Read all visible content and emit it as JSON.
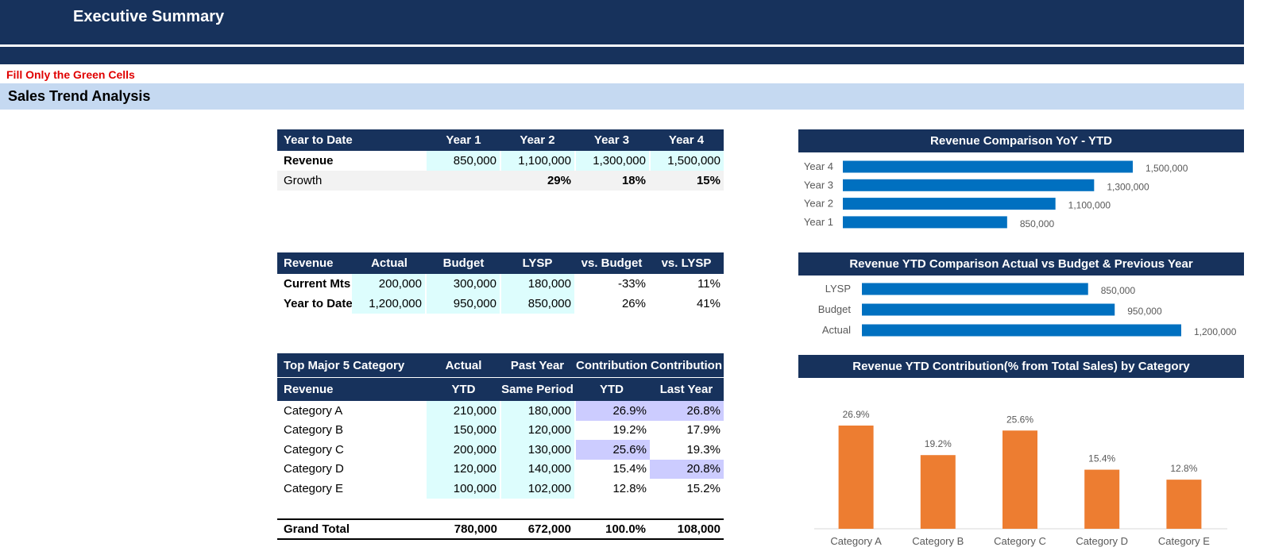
{
  "header": {
    "title": "Executive Summary"
  },
  "note": "Fill Only the Green Cells",
  "section_title": "Sales Trend Analysis",
  "colors": {
    "navy": "#17325c",
    "cyan": "#ddfdfd",
    "lavender": "#ccccff",
    "blue_bar": "#0070c0",
    "orange_bar": "#ed7d31",
    "light_blue": "#c5d9f1",
    "red_note": "#e00000"
  },
  "ytd_table": {
    "header": [
      "Year to Date",
      "Year 1",
      "Year 2",
      "Year 3",
      "Year 4"
    ],
    "revenue": {
      "label": "Revenue",
      "values": [
        "850,000",
        "1,100,000",
        "1,300,000",
        "1,500,000"
      ]
    },
    "growth": {
      "label": "Growth",
      "values": [
        "",
        "29%",
        "18%",
        "15%"
      ]
    }
  },
  "budget_table": {
    "header": [
      "Revenue",
      "Actual",
      "Budget",
      "LYSP",
      "vs. Budget",
      "vs. LYSP"
    ],
    "rows": [
      {
        "label": "Current Mts",
        "values": [
          "200,000",
          "300,000",
          "180,000",
          "-33%",
          "11%"
        ]
      },
      {
        "label": "Year to Date",
        "values": [
          "1,200,000",
          "950,000",
          "850,000",
          "26%",
          "41%"
        ]
      }
    ]
  },
  "category_table": {
    "header1": [
      "Top Major 5 Category",
      "Actual",
      "Past Year",
      "Contribution",
      "Contribution"
    ],
    "header2": [
      "Revenue",
      "YTD",
      "Same Period",
      "YTD",
      "Last Year"
    ],
    "rows": [
      {
        "label": "Category A",
        "values": [
          "210,000",
          "180,000",
          "26.9%",
          "26.8%"
        ]
      },
      {
        "label": "Category B",
        "values": [
          "150,000",
          "120,000",
          "19.2%",
          "17.9%"
        ]
      },
      {
        "label": "Category C",
        "values": [
          "200,000",
          "130,000",
          "25.6%",
          "19.3%"
        ]
      },
      {
        "label": "Category D",
        "values": [
          "120,000",
          "140,000",
          "15.4%",
          "20.8%"
        ]
      },
      {
        "label": "Category E",
        "values": [
          "100,000",
          "102,000",
          "12.8%",
          "15.2%"
        ]
      }
    ],
    "total": {
      "label": "Grand Total",
      "values": [
        "780,000",
        "672,000",
        "100.0%",
        "108,000"
      ]
    }
  },
  "chart_data": [
    {
      "type": "bar",
      "orientation": "horizontal",
      "title": "Revenue Comparison YoY - YTD",
      "categories": [
        "Year 4",
        "Year 3",
        "Year 2",
        "Year 1"
      ],
      "values": [
        1500000,
        1300000,
        1100000,
        850000
      ],
      "labels": [
        "1,500,000",
        "1,300,000",
        "1,100,000",
        "850,000"
      ],
      "xlim": [
        0,
        1500000
      ],
      "grid": false,
      "color": "#0070c0"
    },
    {
      "type": "bar",
      "orientation": "horizontal",
      "title": "Revenue YTD Comparison Actual vs Budget & Previous Year",
      "categories": [
        "LYSP",
        "Budget",
        "Actual"
      ],
      "values": [
        850000,
        950000,
        1200000
      ],
      "labels": [
        "850,000",
        "950,000",
        "1,200,000"
      ],
      "xlim": [
        0,
        1200000
      ],
      "grid": false,
      "color": "#0070c0"
    },
    {
      "type": "bar",
      "orientation": "vertical",
      "title": "Revenue YTD Contribution(% from Total Sales) by Category",
      "categories": [
        "Category A",
        "Category B",
        "Category C",
        "Category D",
        "Category E"
      ],
      "values": [
        26.9,
        19.2,
        25.6,
        15.4,
        12.8
      ],
      "labels": [
        "26.9%",
        "19.2%",
        "25.6%",
        "15.4%",
        "12.8%"
      ],
      "ylim": [
        0,
        26.9
      ],
      "grid": false,
      "color": "#ed7d31"
    }
  ]
}
